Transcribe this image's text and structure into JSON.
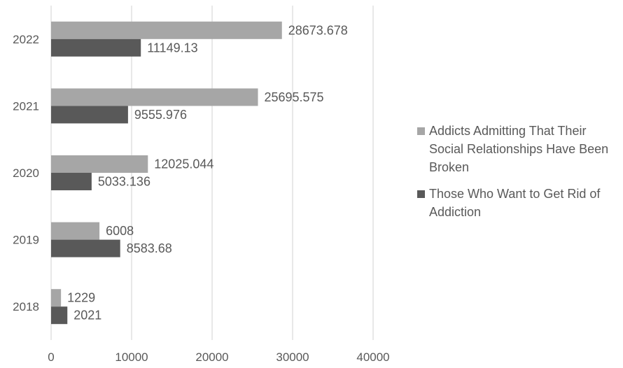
{
  "chart_data": {
    "type": "bar",
    "orientation": "horizontal",
    "categories": [
      "2018",
      "2019",
      "2020",
      "2021",
      "2022"
    ],
    "series": [
      {
        "name": "Addicts Admitting That Their Social Relationships Have Been Broken",
        "color": "#a6a6a6",
        "values": [
          1229,
          6008,
          12025.044,
          25695.575,
          28673.678
        ],
        "labels": [
          "1229",
          "6008",
          "12025.044",
          "25695.575",
          "28673.678"
        ]
      },
      {
        "name": "Those Who Want to Get Rid of Addiction",
        "color": "#595959",
        "values": [
          2021,
          8583.68,
          5033.136,
          9555.976,
          11149.13
        ],
        "labels": [
          "2021",
          "8583.68",
          "5033.136",
          "9555.976",
          "11149.13"
        ]
      }
    ],
    "xticks": [
      "0",
      "10000",
      "20000",
      "30000",
      "40000"
    ],
    "xlim": [
      0,
      40000
    ],
    "grid": true,
    "legend_position": "right",
    "title": "",
    "xlabel": "",
    "ylabel": ""
  }
}
